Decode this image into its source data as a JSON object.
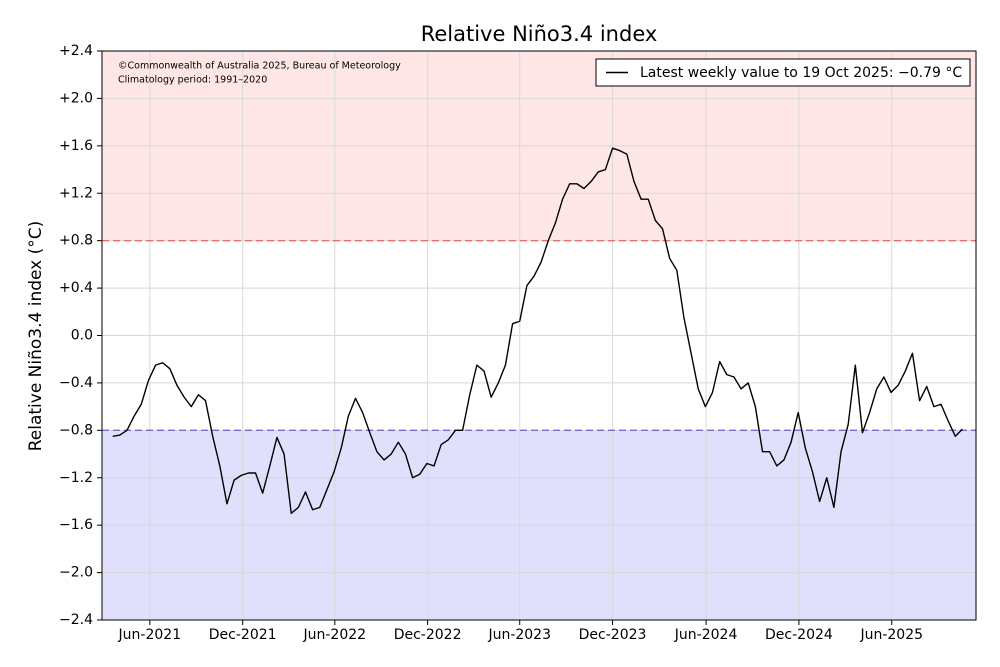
{
  "chart_data": {
    "type": "line",
    "title": "Relative Niño3.4 index",
    "ylabel": "Relative Niño3.4 index (°C)",
    "annotations": [
      "©Commonwealth of Australia 2025, Bureau of Meteorology",
      "Climatology period: 1991–2020"
    ],
    "legend": "upper right",
    "grid": true,
    "ylim": [
      -2.4,
      2.4
    ],
    "yticks": [
      {
        "value": 2.4,
        "label": "+2.4"
      },
      {
        "value": 2.0,
        "label": "+2.0"
      },
      {
        "value": 1.6,
        "label": "+1.6"
      },
      {
        "value": 1.2,
        "label": "+1.2"
      },
      {
        "value": 0.8,
        "label": "+0.8"
      },
      {
        "value": 0.4,
        "label": "+0.4"
      },
      {
        "value": 0,
        "label": "0.0"
      },
      {
        "value": -0.4,
        "label": "−0.4"
      },
      {
        "value": -0.8,
        "label": "−0.8"
      },
      {
        "value": -1.2,
        "label": "−1.2"
      },
      {
        "value": -1.6,
        "label": "−1.6"
      },
      {
        "value": -2.0,
        "label": "−2.0"
      },
      {
        "value": -2.4,
        "label": "−2.4"
      }
    ],
    "xlim": [
      -1.5,
      120.9
    ],
    "xticks": [
      {
        "value": 5.2,
        "label": "Jun-2021"
      },
      {
        "value": 18.2,
        "label": "Dec-2021"
      },
      {
        "value": 31.1,
        "label": "Jun-2022"
      },
      {
        "value": 44.1,
        "label": "Dec-2022"
      },
      {
        "value": 57.0,
        "label": "Jun-2023"
      },
      {
        "value": 70.0,
        "label": "Dec-2023"
      },
      {
        "value": 83.1,
        "label": "Jun-2024"
      },
      {
        "value": 96.1,
        "label": "Dec-2024"
      },
      {
        "value": 109.1,
        "label": "Jun-2025"
      }
    ],
    "thresholds": [
      {
        "value": 0.8,
        "side": "above",
        "fill": "#ffe6e6",
        "line_color": "#e8706a"
      },
      {
        "value": -0.8,
        "side": "below",
        "fill": "#e0e0fc",
        "line_color": "#6e6ec8"
      }
    ],
    "series": [
      {
        "name": "Latest weekly value to 19 Oct 2025: −0.79 °C",
        "color": "#000000",
        "values": [
          -0.85,
          -0.84,
          -0.8,
          -0.68,
          -0.58,
          -0.38,
          -0.25,
          -0.23,
          -0.28,
          -0.42,
          -0.52,
          -0.6,
          -0.5,
          -0.55,
          -0.85,
          -1.1,
          -1.42,
          -1.22,
          -1.18,
          -1.16,
          -1.16,
          -1.33,
          -1.1,
          -0.86,
          -1.0,
          -1.5,
          -1.45,
          -1.32,
          -1.47,
          -1.45,
          -1.3,
          -1.15,
          -0.95,
          -0.68,
          -0.53,
          -0.65,
          -0.82,
          -0.98,
          -1.05,
          -1.0,
          -0.9,
          -1.0,
          -1.2,
          -1.17,
          -1.08,
          -1.1,
          -0.92,
          -0.88,
          -0.8,
          -0.8,
          -0.5,
          -0.25,
          -0.3,
          -0.52,
          -0.4,
          -0.25,
          0.1,
          0.12,
          0.42,
          0.5,
          0.62,
          0.8,
          0.95,
          1.15,
          1.28,
          1.28,
          1.24,
          1.3,
          1.38,
          1.4,
          1.58,
          1.56,
          1.53,
          1.3,
          1.15,
          1.15,
          0.97,
          0.9,
          0.65,
          0.55,
          0.15,
          -0.15,
          -0.45,
          -0.6,
          -0.48,
          -0.22,
          -0.33,
          -0.35,
          -0.45,
          -0.4,
          -0.6,
          -0.98,
          -0.98,
          -1.1,
          -1.05,
          -0.9,
          -0.65,
          -0.95,
          -1.15,
          -1.4,
          -1.2,
          -1.45,
          -0.98,
          -0.75,
          -0.25,
          -0.82,
          -0.65,
          -0.45,
          -0.35,
          -0.48,
          -0.42,
          -0.3,
          -0.15,
          -0.55,
          -0.43,
          -0.6,
          -0.58,
          -0.72,
          -0.85,
          -0.79
        ]
      }
    ]
  }
}
